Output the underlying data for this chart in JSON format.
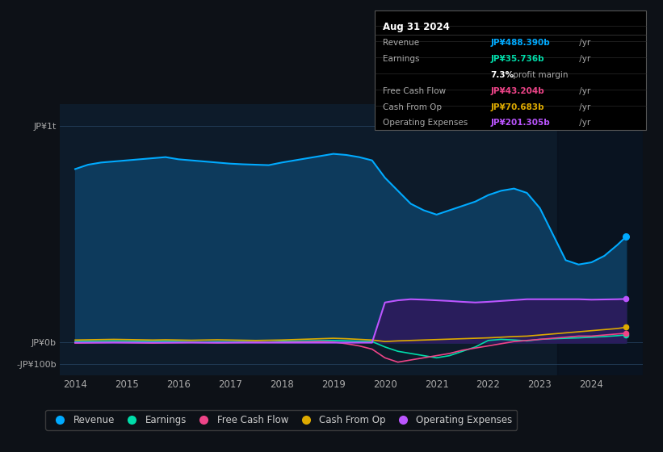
{
  "bg_color": "#0d1117",
  "plot_bg_color": "#0d1b2a",
  "grid_color": "#2a4a6a",
  "years": [
    2014.0,
    2014.25,
    2014.5,
    2014.75,
    2015.0,
    2015.25,
    2015.5,
    2015.75,
    2016.0,
    2016.25,
    2016.5,
    2016.75,
    2017.0,
    2017.25,
    2017.5,
    2017.75,
    2018.0,
    2018.25,
    2018.5,
    2018.75,
    2019.0,
    2019.25,
    2019.5,
    2019.75,
    2020.0,
    2020.25,
    2020.5,
    2020.75,
    2021.0,
    2021.25,
    2021.5,
    2021.75,
    2022.0,
    2022.25,
    2022.5,
    2022.75,
    2023.0,
    2023.25,
    2023.5,
    2023.75,
    2024.0,
    2024.25,
    2024.5,
    2024.67
  ],
  "revenue": [
    800,
    820,
    830,
    835,
    840,
    845,
    850,
    855,
    845,
    840,
    835,
    830,
    825,
    822,
    820,
    818,
    830,
    840,
    850,
    860,
    870,
    865,
    855,
    840,
    760,
    700,
    640,
    610,
    590,
    610,
    630,
    650,
    680,
    700,
    710,
    690,
    620,
    500,
    380,
    360,
    370,
    400,
    450,
    488
  ],
  "earnings": [
    5,
    6,
    7,
    8,
    7,
    6,
    5,
    6,
    5,
    4,
    3,
    4,
    4,
    5,
    4,
    3,
    6,
    7,
    8,
    9,
    10,
    8,
    6,
    5,
    -20,
    -40,
    -50,
    -60,
    -70,
    -60,
    -40,
    -20,
    10,
    15,
    12,
    8,
    15,
    18,
    20,
    22,
    25,
    28,
    32,
    35.7
  ],
  "free_cash_flow": [
    -2,
    -1,
    0,
    1,
    0,
    -1,
    -2,
    -1,
    0,
    1,
    0,
    -1,
    0,
    1,
    2,
    1,
    2,
    3,
    4,
    5,
    3,
    -5,
    -15,
    -30,
    -70,
    -90,
    -80,
    -70,
    -60,
    -50,
    -35,
    -25,
    -15,
    -5,
    5,
    10,
    15,
    20,
    25,
    30,
    30,
    35,
    40,
    43.2
  ],
  "cash_from_op": [
    12,
    13,
    14,
    15,
    14,
    13,
    12,
    13,
    12,
    11,
    12,
    13,
    12,
    11,
    10,
    11,
    12,
    14,
    16,
    18,
    20,
    18,
    15,
    12,
    5,
    8,
    10,
    12,
    14,
    16,
    18,
    20,
    22,
    25,
    28,
    30,
    35,
    40,
    45,
    50,
    55,
    60,
    65,
    70.7
  ],
  "operating_expenses": [
    0,
    0,
    0,
    0,
    0,
    0,
    0,
    0,
    0,
    0,
    0,
    0,
    0,
    0,
    0,
    0,
    0,
    0,
    0,
    0,
    0,
    0,
    0,
    0,
    185,
    195,
    200,
    198,
    195,
    192,
    188,
    185,
    188,
    192,
    196,
    200,
    200,
    200,
    200,
    200,
    198,
    199,
    200,
    201.3
  ],
  "revenue_color": "#00aaff",
  "earnings_color": "#00ddaa",
  "fcf_color": "#ee4488",
  "cashop_color": "#ddaa00",
  "opex_color": "#bb55ff",
  "revenue_fill_color": "#0d3a5c",
  "opex_fill_color": "#2d1a5c",
  "ylabel_top": "JP¥1t",
  "ylabel_zero": "JP¥0b",
  "ylabel_neg": "-JP¥100b",
  "xlabel_years": [
    "2014",
    "2015",
    "2016",
    "2017",
    "2018",
    "2019",
    "2020",
    "2021",
    "2022",
    "2023",
    "2024"
  ],
  "xtick_positions": [
    2014,
    2015,
    2016,
    2017,
    2018,
    2019,
    2020,
    2021,
    2022,
    2023,
    2024
  ],
  "tooltip_date": "Aug 31 2024",
  "tooltip_revenue_label": "Revenue",
  "tooltip_revenue_value": "JP¥488.390b /yr",
  "tooltip_earnings_label": "Earnings",
  "tooltip_earnings_value": "JP¥35.736b /yr",
  "tooltip_margin": "7.3% profit margin",
  "tooltip_fcf_label": "Free Cash Flow",
  "tooltip_fcf_value": "JP¥43.204b /yr",
  "tooltip_cashop_label": "Cash From Op",
  "tooltip_cashop_value": "JP¥70.683b /yr",
  "tooltip_opex_label": "Operating Expenses",
  "tooltip_opex_value": "JP¥201.305b /yr",
  "legend_items": [
    "Revenue",
    "Earnings",
    "Free Cash Flow",
    "Cash From Op",
    "Operating Expenses"
  ],
  "legend_colors": [
    "#00aaff",
    "#00ddaa",
    "#ee4488",
    "#ddaa00",
    "#bb55ff"
  ],
  "xlim_min": 2013.7,
  "xlim_max": 2025.0,
  "ylim_min": -150,
  "ylim_max": 1100,
  "shade_start": 2023.33
}
